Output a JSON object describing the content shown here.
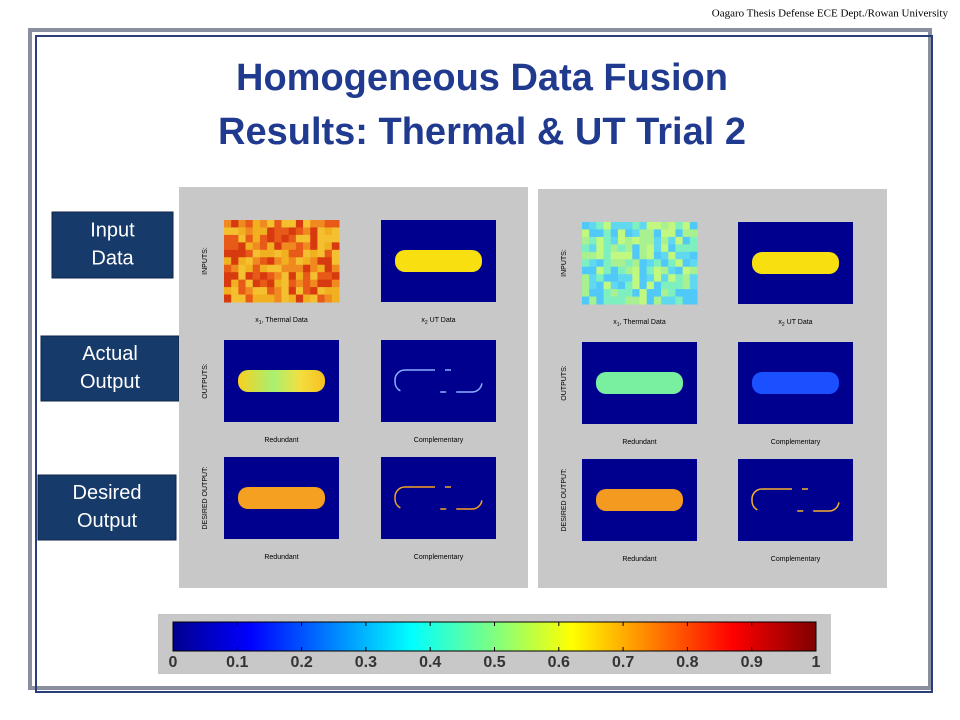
{
  "header": "Oagaro Thesis Defense ECE Dept./Rowan University",
  "title": [
    "Homogeneous Data Fusion",
    "Results: Thermal & UT Trial 2"
  ],
  "row_labels": [
    [
      "Input",
      "Data"
    ],
    [
      "Actual",
      "Output"
    ],
    [
      "Desired",
      "Output"
    ]
  ],
  "panels": [
    {
      "rows": [
        {
          "label": "INPUTS:",
          "captions": [
            {
              "var": "x",
              "sub": "1",
              "text": ", Thermal Data"
            },
            {
              "var": "x",
              "sub": "2",
              "text": " UT Data"
            }
          ]
        },
        {
          "label": "OUTPUTS:",
          "captions": [
            "Redundant",
            "Complementary"
          ]
        },
        {
          "label": "DESIRED OUTPUT:",
          "captions": [
            "Redundant",
            "Complementary"
          ]
        }
      ]
    },
    {
      "rows": [
        {
          "label": "INPUTS:",
          "captions": [
            {
              "var": "x",
              "sub": "1",
              "text": ", Thermal Data"
            },
            {
              "var": "x",
              "sub": "2",
              "text": " UT Data"
            }
          ]
        },
        {
          "label": "OUTPUTS:",
          "captions": [
            "Redundant",
            "Complementary"
          ]
        },
        {
          "label": "DESIRED OUTPUT:",
          "captions": [
            "Redundant",
            "Complementary"
          ]
        }
      ]
    }
  ],
  "colorbar": {
    "lim": [
      0,
      1
    ],
    "ticks": [
      0,
      0.1,
      0.2,
      0.3,
      0.4,
      0.5,
      0.6,
      0.7,
      0.8,
      0.9,
      1
    ]
  }
}
